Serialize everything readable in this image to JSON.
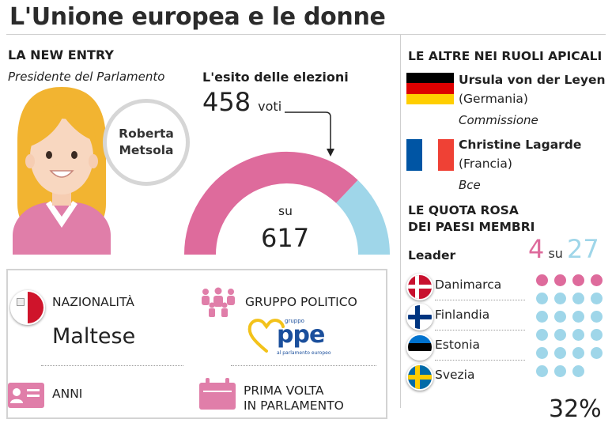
{
  "title": "L'Unione europea e le donne",
  "new_entry": {
    "heading": "LA NEW ENTRY",
    "role": "Presidente del Parlamento",
    "name_line1": "Roberta",
    "name_line2": "Metsola"
  },
  "election": {
    "heading": "L'esito delle elezioni",
    "votes": "458",
    "votes_unit": "voti",
    "su_label": "su",
    "total": "617",
    "votes_fraction": 0.742,
    "color_votes": "#de6b9c",
    "color_rest": "#9fd6e9"
  },
  "details": {
    "nationality_label": "NAZIONALITÀ",
    "nationality_value": "Maltese",
    "group_label": "GRUPPO POLITICO",
    "group_logo_small": "gruppo",
    "group_logo_text": "ppe",
    "group_logo_sub": "al parlamento europeo",
    "age_label": "ANNI",
    "first_time_line1": "PRIMA VOLTA",
    "first_time_line2": "IN PARLAMENTO"
  },
  "others": {
    "heading": "LE ALTRE NEI RUOLI APICALI",
    "people": [
      {
        "name": "Ursula von der Leyen",
        "country": "(Germania)",
        "institution": "Commissione",
        "flag": "germany-flag"
      },
      {
        "name": "Christine Lagarde",
        "country": "(Francia)",
        "institution": "Bce",
        "flag": "france-flag"
      }
    ]
  },
  "quota": {
    "heading_line1": "LE QUOTA ROSA",
    "heading_line2": "DEI PAESI MEMBRI",
    "leader_label": "Leader",
    "count": "4",
    "su": "su",
    "total": "27",
    "countries": [
      {
        "name": "Danimarca",
        "flag": "denmark-flag"
      },
      {
        "name": "Finlandia",
        "flag": "finland-flag"
      },
      {
        "name": "Estonia",
        "flag": "estonia-flag"
      },
      {
        "name": "Svezia",
        "flag": "sweden-flag"
      }
    ],
    "dots_highlighted": 4,
    "dots_visible": 23,
    "color_pink": "#de6b9c",
    "color_blue": "#9fd6e9",
    "partial_value": "32%"
  }
}
